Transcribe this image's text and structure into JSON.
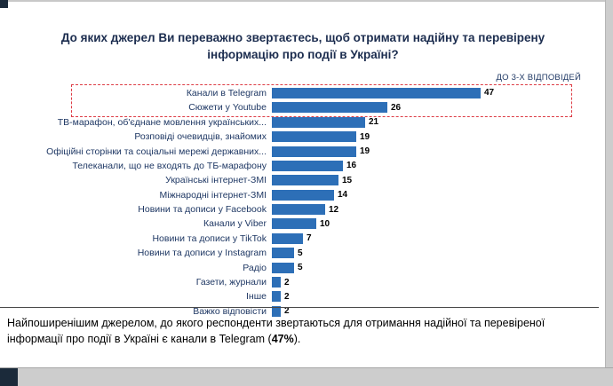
{
  "title": "До яких джерел Ви переважно звертаєтесь, щоб отримати надійну та перевірену інформацію про події в Україні?",
  "note": "ДО 3-Х ВІДПОВІДЕЙ",
  "chart_data": {
    "type": "bar",
    "orientation": "horizontal",
    "categories": [
      "Канали в Telegram",
      "Сюжети у Youtube",
      "ТВ-марафон, об'єднане мовлення українських...",
      "Розповіді очевидців, знайомих",
      "Офіційні сторінки та соціальні мережі державних...",
      "Телеканали, що не входять до ТБ-марафону",
      "Українські інтернет-ЗМІ",
      "Міжнародні інтернет-ЗМІ",
      "Новини та дописи у Facebook",
      "Канали у Viber",
      "Новини та дописи у TikTok",
      "Новини та дописи у Instagram",
      "Радіо",
      "Газети, журнали",
      "Інше",
      "Важко відповісти"
    ],
    "values": [
      47,
      26,
      21,
      19,
      19,
      16,
      15,
      14,
      12,
      10,
      7,
      5,
      5,
      2,
      2,
      2
    ],
    "xlim": [
      0,
      50
    ],
    "bar_color": "#2d6fb7",
    "highlight": {
      "rows": [
        0,
        1
      ],
      "style": "dashed-box",
      "color": "#dd3b44"
    },
    "legend": "none",
    "grid": false
  },
  "caption": {
    "before": "Найпоширенішим джерелом, до якого респонденти звертаються для отримання надійної та перевіреної інформації про події в Україні є канали в Telegram (",
    "bold": "47%",
    "after": ")."
  }
}
